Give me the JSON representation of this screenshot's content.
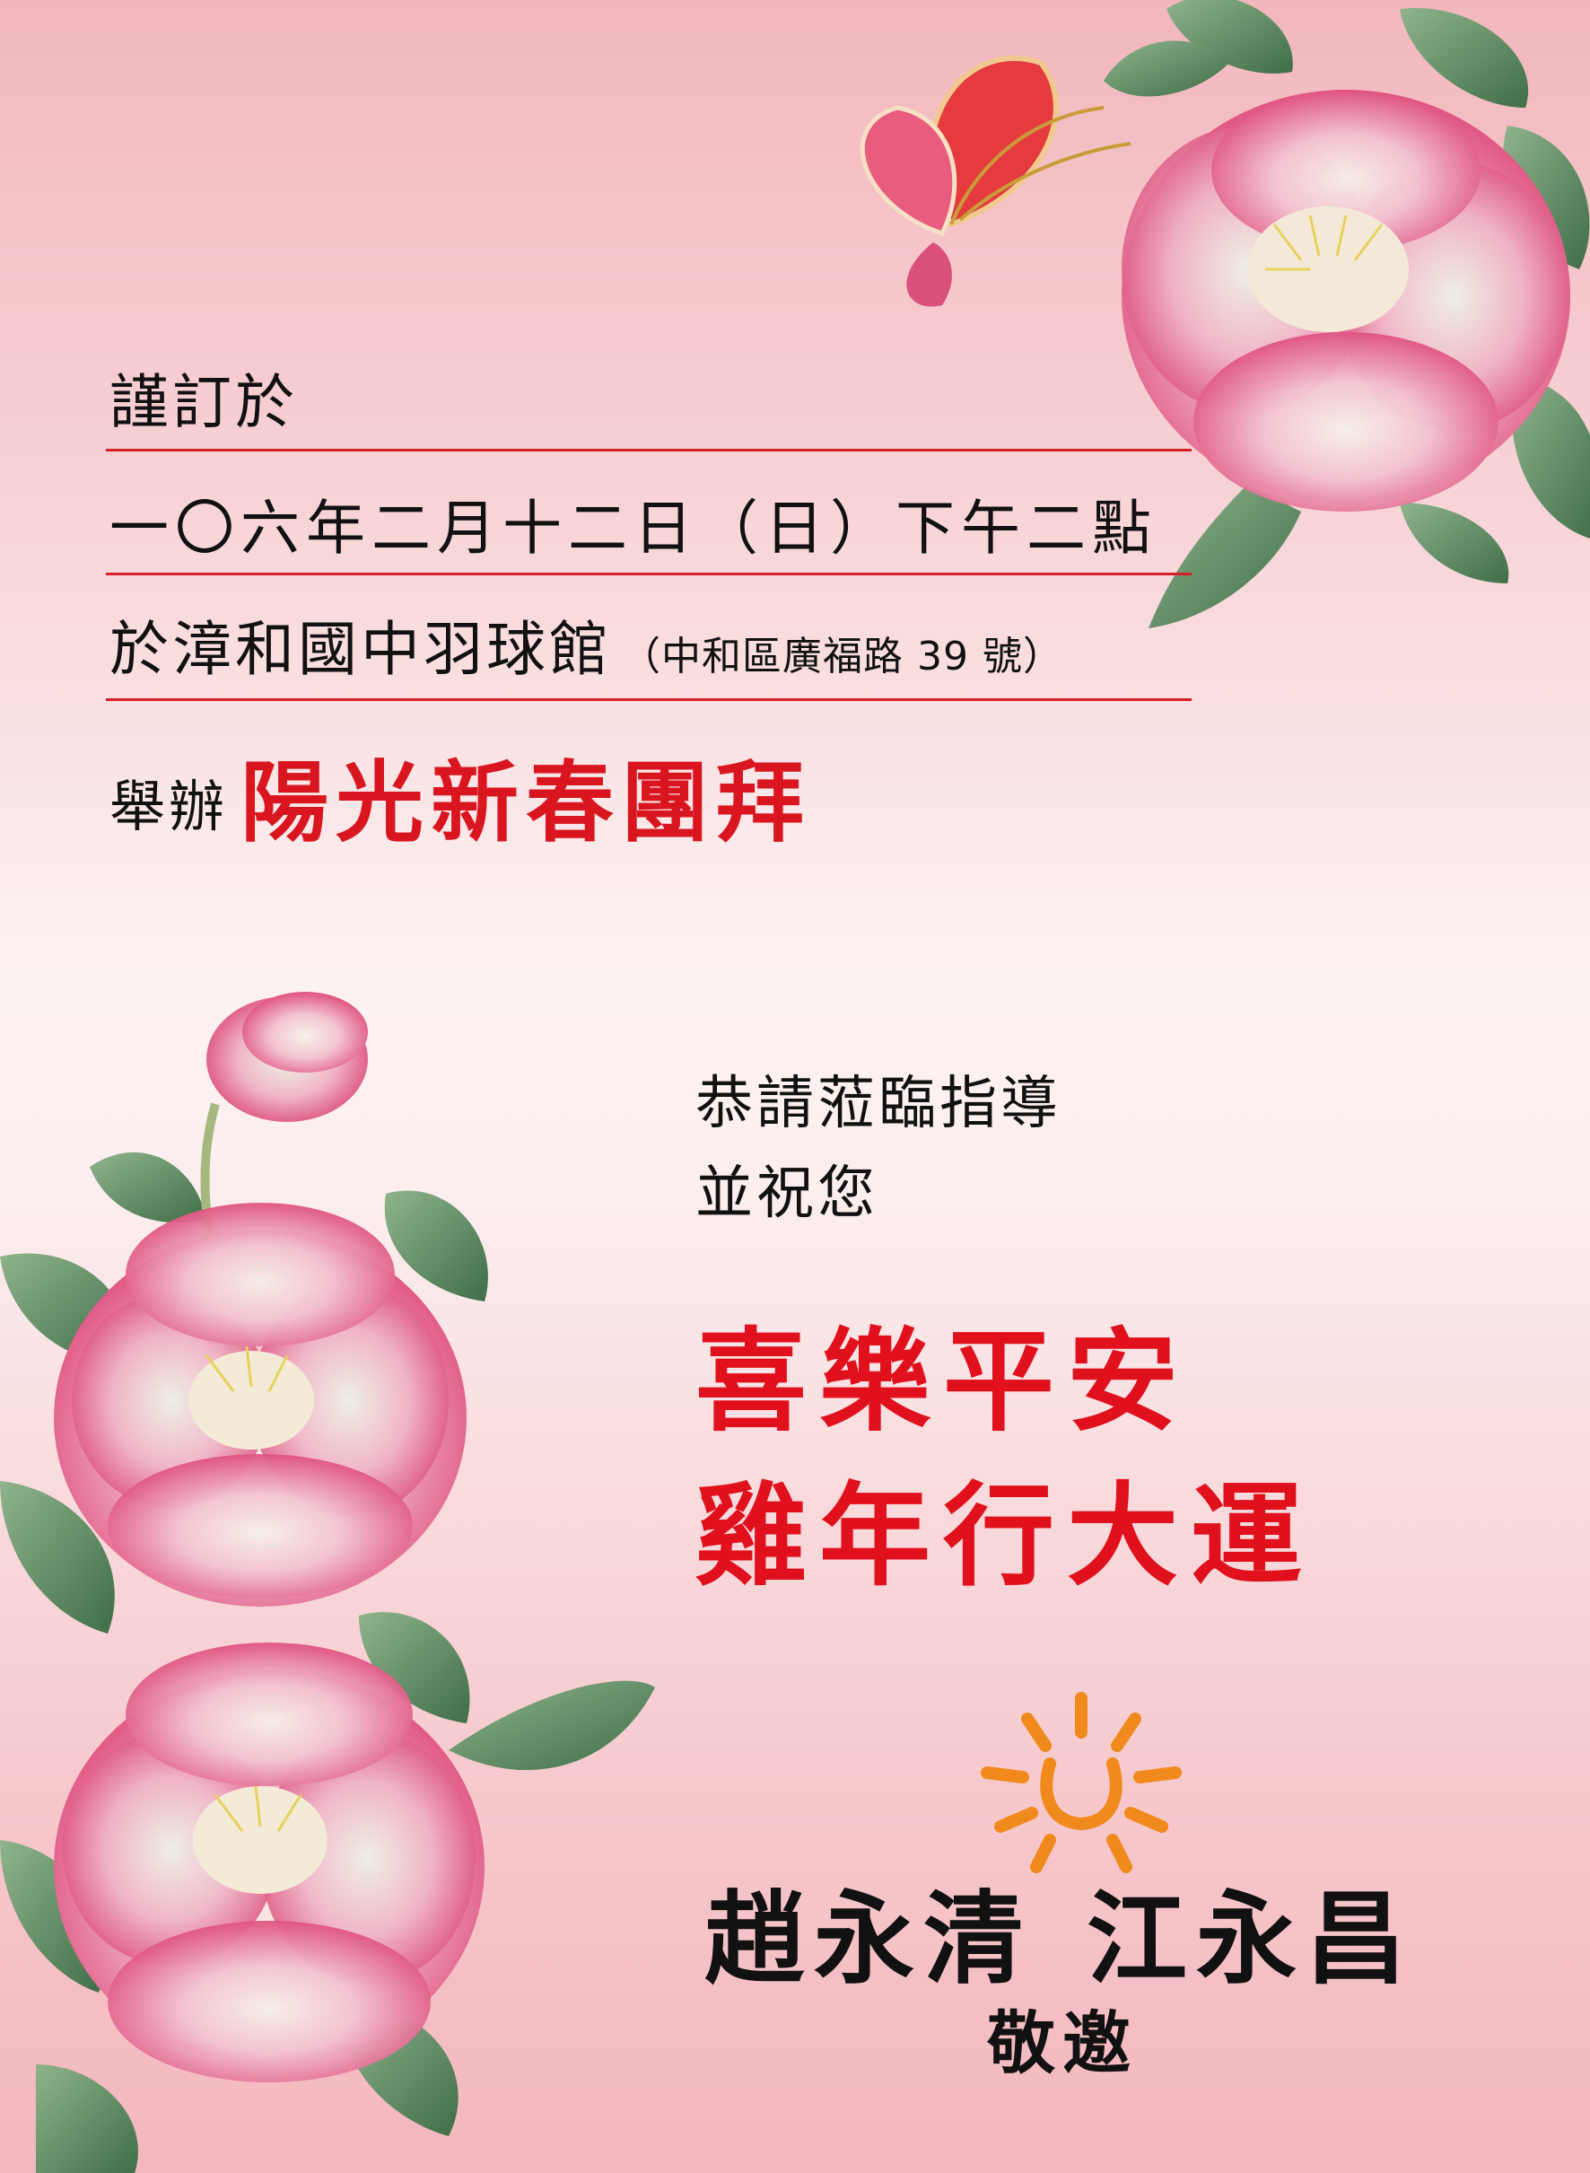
{
  "invitation": {
    "intro": "謹訂於",
    "datetime": "一〇六年二月十二日（日）下午二點",
    "venue": "於漳和國中羽球館",
    "address": "（中和區廣福路 39 號）",
    "host_prefix": "舉辦",
    "event_name": "陽光新春團拜"
  },
  "wishes": {
    "line1": "恭請蒞臨指導",
    "line2": "並祝您",
    "blessing1": "喜樂平安",
    "blessing2": "雞年行大運"
  },
  "signature": {
    "host1": "趙永清",
    "host2": "江永昌",
    "closing": "敬邀"
  },
  "decor": {
    "icons": [
      "butterfly-icon",
      "peony-flower-icon",
      "sun-logo-icon"
    ],
    "colors": {
      "accent_red": "#d9161f",
      "divider_red": "#d71f27",
      "sun_orange": "#f08a1c",
      "petal_pink": "#e0527f",
      "leaf_green": "#5e8c60"
    }
  }
}
